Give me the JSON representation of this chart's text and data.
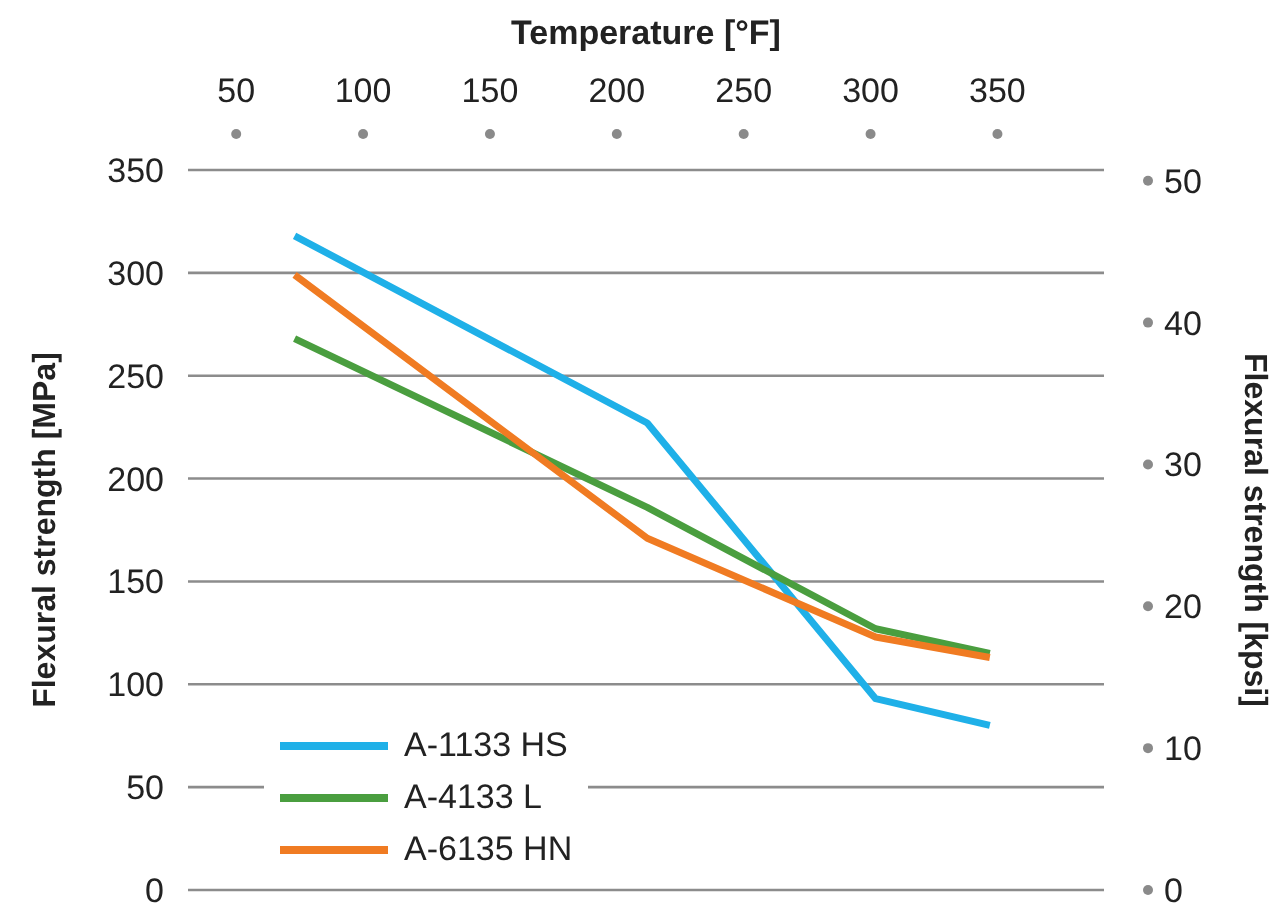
{
  "chart_data": {
    "type": "line",
    "xlabel": "Temperature [°F]",
    "ylabel": "Flexural strength [MPa]",
    "y2label": "Flexural strength [kpsi]",
    "x": [
      73,
      212,
      302,
      347
    ],
    "series": [
      {
        "name": "A-1133 HS",
        "color": "#1fb0e8",
        "values": [
          318,
          227,
          93,
          80
        ]
      },
      {
        "name": "A-4133 L",
        "color": "#4a9e3f",
        "values": [
          268,
          186,
          127,
          115
        ]
      },
      {
        "name": "A-6135 HN",
        "color": "#f07b22",
        "values": [
          299,
          171,
          123,
          113
        ]
      }
    ],
    "xlim": [
      31,
      392
    ],
    "xticks": [
      50,
      100,
      150,
      200,
      250,
      300,
      350
    ],
    "ylim": [
      0,
      350
    ],
    "yticks": [
      0,
      50,
      100,
      150,
      200,
      250,
      300,
      350
    ],
    "y2lim": [
      0,
      50.76
    ],
    "y2ticks": [
      0,
      10,
      20,
      30,
      40,
      50
    ],
    "grid": "y",
    "legend": "bottom left",
    "marker": "none",
    "line_style": "solid"
  }
}
